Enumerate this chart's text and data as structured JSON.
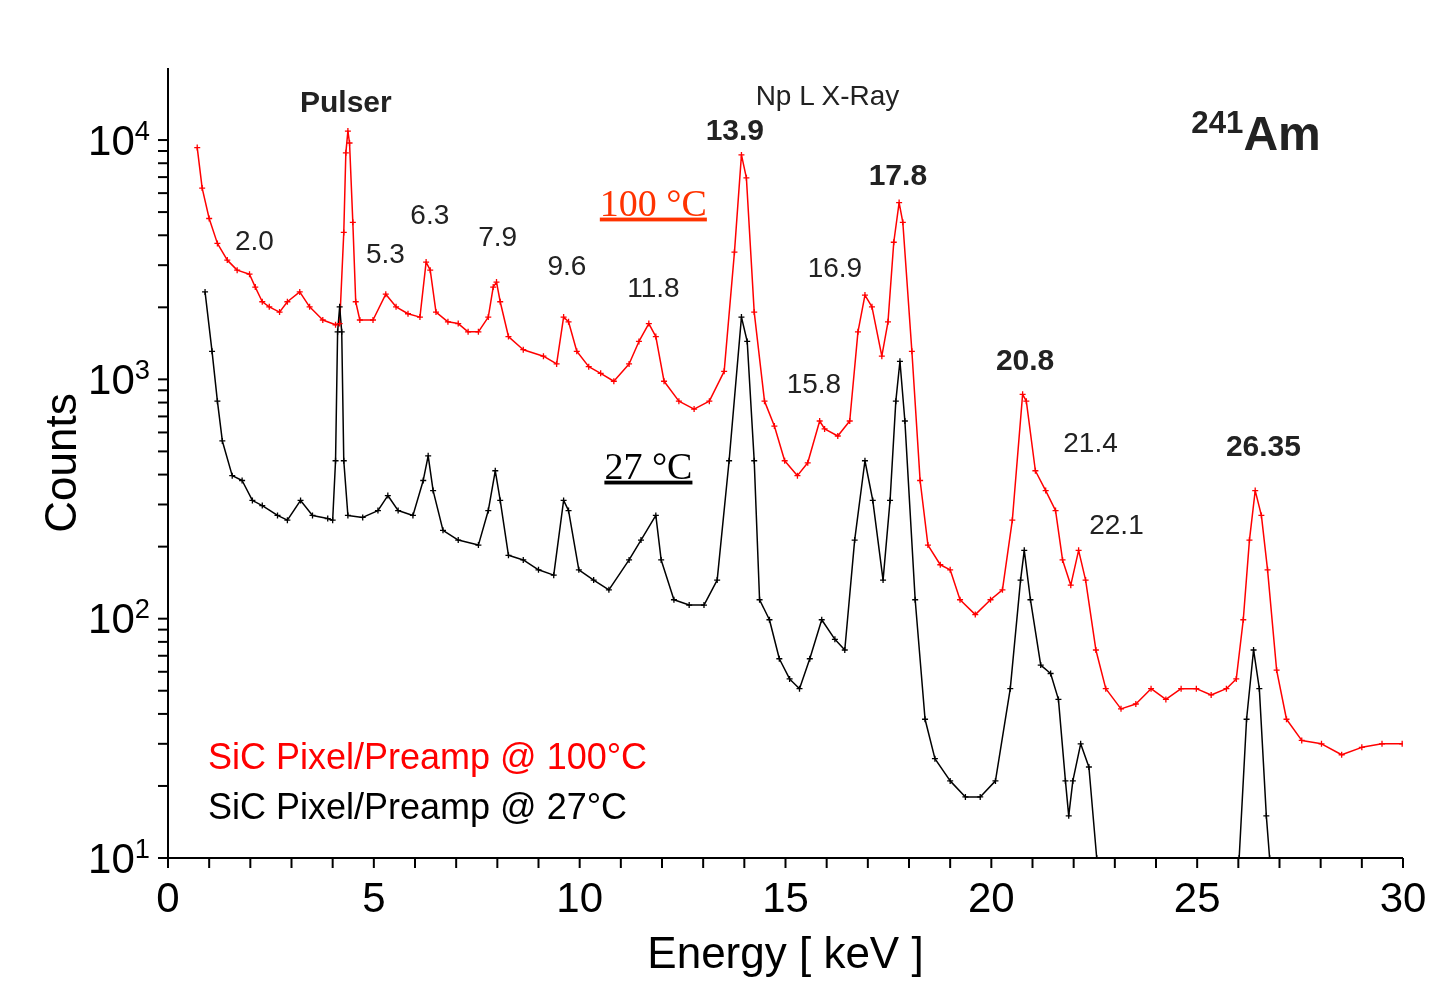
{
  "chart_data": {
    "type": "line",
    "xlabel": "Energy [ keV ]",
    "ylabel": "Counts",
    "xlim": [
      0,
      30
    ],
    "xticks": [
      0,
      {
        "value": 1,
        "label": null
      },
      {
        "value": 2,
        "label": null
      },
      {
        "value": 3,
        "label": null
      },
      {
        "value": 4,
        "label": null
      },
      5,
      {
        "value": 6,
        "label": null
      },
      {
        "value": 7,
        "label": null
      },
      {
        "value": 8,
        "label": null
      },
      {
        "value": 9,
        "label": null
      },
      10,
      {
        "value": 11,
        "label": null
      },
      {
        "value": 12,
        "label": null
      },
      {
        "value": 13,
        "label": null
      },
      {
        "value": 14,
        "label": null
      },
      15,
      {
        "value": 16,
        "label": null
      },
      {
        "value": 17,
        "label": null
      },
      {
        "value": 18,
        "label": null
      },
      {
        "value": 19,
        "label": null
      },
      20,
      {
        "value": 21,
        "label": null
      },
      {
        "value": 22,
        "label": null
      },
      {
        "value": 23,
        "label": null
      },
      {
        "value": 24,
        "label": null
      },
      25,
      {
        "value": 26,
        "label": null
      },
      {
        "value": 27,
        "label": null
      },
      {
        "value": 28,
        "label": null
      },
      {
        "value": 29,
        "label": null
      },
      30
    ],
    "ylim": [
      10,
      20000
    ],
    "yticks": [
      {
        "value": 10,
        "label": "10$^{1}$"
      },
      {
        "value": 20,
        "label": null
      },
      {
        "value": 30,
        "label": null
      },
      {
        "value": 40,
        "label": null
      },
      {
        "value": 50,
        "label": null
      },
      {
        "value": 60,
        "label": null
      },
      {
        "value": 70,
        "label": null
      },
      {
        "value": 80,
        "label": null
      },
      {
        "value": 90,
        "label": null
      },
      {
        "value": 100,
        "label": "10$^{2}$"
      },
      {
        "value": 200,
        "label": null
      },
      {
        "value": 300,
        "label": null
      },
      {
        "value": 400,
        "label": null
      },
      {
        "value": 500,
        "label": null
      },
      {
        "value": 600,
        "label": null
      },
      {
        "value": 700,
        "label": null
      },
      {
        "value": 800,
        "label": null
      },
      {
        "value": 900,
        "label": null
      },
      {
        "value": 1000,
        "label": "10$^{3}$"
      },
      {
        "value": 2000,
        "label": null
      },
      {
        "value": 3000,
        "label": null
      },
      {
        "value": 4000,
        "label": null
      },
      {
        "value": 5000,
        "label": null
      },
      {
        "value": 6000,
        "label": null
      },
      {
        "value": 7000,
        "label": null
      },
      {
        "value": 8000,
        "label": null
      },
      {
        "value": 9000,
        "label": null
      },
      {
        "value": 10000,
        "label": "10$^{4}$"
      }
    ],
    "log": "y",
    "grid": false,
    "marker": "cross",
    "line_style": "solid",
    "legend": "bottom left",
    "series": [
      {
        "name": "SiC Pixel/Preamp @ 100°C",
        "color": "#ff0000",
        "x": [
          0.71,
          0.83,
          1.0,
          1.2,
          1.44,
          1.68,
          1.98,
          2.12,
          2.29,
          2.46,
          2.71,
          2.9,
          3.2,
          3.44,
          3.76,
          4.07,
          4.17,
          4.27,
          4.32,
          4.37,
          4.41,
          4.49,
          4.56,
          4.66,
          4.98,
          5.29,
          5.54,
          5.83,
          6.12,
          6.27,
          6.37,
          6.51,
          6.8,
          7.05,
          7.29,
          7.54,
          7.78,
          7.9,
          7.98,
          8.07,
          8.27,
          8.63,
          9.12,
          9.44,
          9.61,
          9.73,
          9.93,
          10.22,
          10.51,
          10.83,
          11.2,
          11.44,
          11.68,
          11.85,
          12.05,
          12.41,
          12.78,
          13.15,
          13.51,
          13.76,
          13.93,
          14.05,
          14.24,
          14.49,
          14.73,
          14.98,
          15.29,
          15.54,
          15.83,
          15.95,
          16.27,
          16.56,
          16.76,
          16.93,
          17.1,
          17.34,
          17.49,
          17.63,
          17.76,
          17.85,
          18.07,
          18.27,
          18.46,
          18.76,
          19.0,
          19.24,
          19.61,
          19.98,
          20.27,
          20.51,
          20.76,
          20.85,
          21.07,
          21.32,
          21.56,
          21.73,
          21.93,
          22.12,
          22.29,
          22.54,
          22.78,
          23.15,
          23.51,
          23.88,
          24.24,
          24.61,
          24.98,
          25.34,
          25.71,
          25.95,
          26.12,
          26.27,
          26.41,
          26.56,
          26.71,
          26.93,
          27.17,
          27.54,
          28.02,
          28.51,
          29.0,
          29.49,
          29.98
        ],
        "values": [
          9300,
          6300,
          4700,
          3700,
          3150,
          2860,
          2750,
          2430,
          2110,
          2010,
          1910,
          2110,
          2320,
          2010,
          1770,
          1690,
          1710,
          4110,
          8840,
          10900,
          9720,
          4530,
          2110,
          1770,
          1770,
          2270,
          2010,
          1880,
          1820,
          3090,
          2860,
          1910,
          1740,
          1710,
          1580,
          1580,
          1820,
          2430,
          2550,
          2110,
          1510,
          1330,
          1250,
          1160,
          1820,
          1740,
          1310,
          1130,
          1060,
          982,
          1160,
          1440,
          1710,
          1510,
          982,
          811,
          751,
          811,
          1080,
          3400,
          8670,
          6950,
          1910,
          811,
          638,
          457,
          396,
          448,
          670,
          621,
          580,
          670,
          1580,
          2250,
          2010,
          1250,
          1740,
          3740,
          5480,
          4530,
          1310,
          378,
          203,
          168,
          160,
          120,
          104,
          120,
          132,
          258,
          866,
          811,
          415,
          343,
          283,
          176,
          138,
          193,
          145,
          74,
          51,
          42,
          44,
          51,
          46,
          51,
          51,
          48,
          51,
          56,
          99,
          213,
          343,
          270,
          160,
          61,
          38,
          31,
          30,
          27,
          29,
          30,
          30
        ]
      },
      {
        "name": "SiC Pixel/Preamp @ 27°C",
        "color": "#000000",
        "x": [
          0.9,
          1.07,
          1.2,
          1.32,
          1.56,
          1.8,
          2.05,
          2.29,
          2.66,
          2.9,
          3.22,
          3.51,
          3.88,
          4.0,
          4.07,
          4.12,
          4.17,
          4.22,
          4.27,
          4.37,
          4.73,
          5.1,
          5.34,
          5.59,
          5.95,
          6.2,
          6.32,
          6.44,
          6.68,
          7.05,
          7.54,
          7.78,
          7.95,
          8.07,
          8.27,
          8.63,
          9.0,
          9.37,
          9.61,
          9.73,
          9.98,
          10.34,
          10.71,
          11.2,
          11.49,
          11.85,
          11.98,
          12.29,
          12.66,
          13.02,
          13.34,
          13.63,
          13.93,
          14.07,
          14.24,
          14.37,
          14.61,
          14.85,
          15.1,
          15.34,
          15.59,
          15.88,
          16.2,
          16.44,
          16.68,
          16.93,
          17.12,
          17.37,
          17.54,
          17.68,
          17.78,
          17.9,
          18.15,
          18.39,
          18.63,
          19.0,
          19.37,
          19.73,
          20.1,
          20.46,
          20.71,
          20.8,
          20.95,
          21.2,
          21.44,
          21.63,
          21.8,
          21.88,
          21.98,
          22.17,
          22.37,
          22.56,
          24.0,
          26.02,
          26.2,
          26.37,
          26.51,
          26.68,
          26.76
        ],
        "values": [
          2320,
          1310,
          811,
          553,
          396,
          378,
          312,
          297,
          270,
          258,
          312,
          270,
          262,
          258,
          457,
          1580,
          2010,
          1580,
          457,
          270,
          265,
          283,
          327,
          283,
          270,
          378,
          479,
          343,
          234,
          213,
          203,
          283,
          415,
          312,
          184,
          176,
          160,
          152,
          312,
          283,
          160,
          145,
          132,
          176,
          213,
          270,
          176,
          120,
          114,
          114,
          145,
          457,
          1820,
          1440,
          457,
          120,
          99,
          68,
          56,
          51,
          68,
          99,
          82,
          74,
          213,
          457,
          312,
          145,
          312,
          811,
          1190,
          670,
          120,
          38,
          26,
          21,
          18,
          18,
          21,
          51,
          145,
          193,
          120,
          64,
          59,
          46,
          21,
          15,
          21,
          30,
          24,
          10,
          null,
          10,
          38,
          74,
          51,
          15,
          10
        ]
      }
    ],
    "annotations": [
      "Pulser",
      "2.0",
      "5.3",
      "6.3",
      "7.9",
      "9.6",
      "11.8",
      "13.9",
      "Np L X-Ray",
      "100 °C",
      "16.9",
      "17.8",
      "15.8",
      "27 °C",
      "20.8",
      "21.4",
      "22.1",
      "26.35",
      "$^{241}$Am"
    ]
  }
}
